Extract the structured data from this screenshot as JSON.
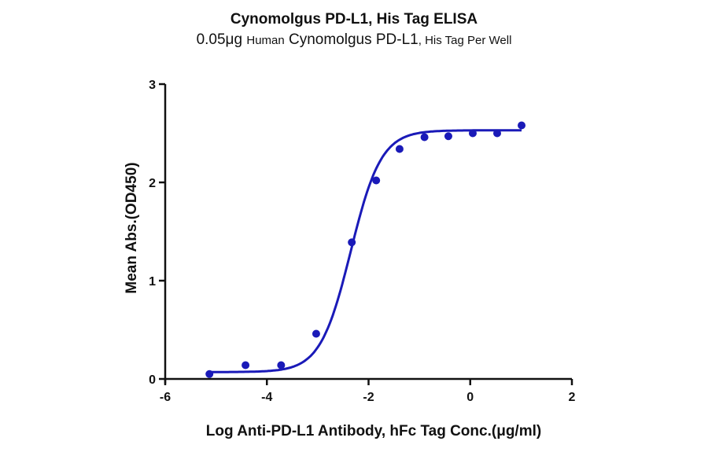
{
  "chart_data": {
    "type": "scatter",
    "title": "Cynomolgus PD-L1, His Tag ELISA",
    "subtitle": {
      "amount": "0.05μg",
      "species": "Human",
      "protein": "Cynomolgus PD-L1",
      "tag": ", His Tag Per Well"
    },
    "xlabel": "Log Anti-PD-L1 Antibody, hFc Tag Conc.(μg/ml)",
    "ylabel": "Mean Abs.(OD450)",
    "xlim": [
      -6,
      2
    ],
    "ylim": [
      0,
      3
    ],
    "xticks": [
      -6,
      -4,
      -2,
      0,
      2
    ],
    "yticks": [
      0,
      1,
      2,
      3
    ],
    "grid": false,
    "legend": null,
    "series": [
      {
        "name": "Mean Abs.(OD450)",
        "color": "#1a1ab8",
        "x": [
          -5.13,
          -4.42,
          -3.72,
          -3.03,
          -2.33,
          -1.85,
          -1.39,
          -0.9,
          -0.43,
          0.05,
          0.53,
          1.01
        ],
        "y": [
          0.05,
          0.14,
          0.14,
          0.46,
          1.39,
          2.02,
          2.34,
          2.46,
          2.47,
          2.5,
          2.5,
          2.58
        ]
      }
    ],
    "fit": {
      "type": "4PL sigmoid",
      "bottom": 0.07,
      "top": 2.53,
      "logEC50": -2.35,
      "hill": 1.45,
      "x_range": [
        -5.13,
        1.01
      ]
    }
  }
}
